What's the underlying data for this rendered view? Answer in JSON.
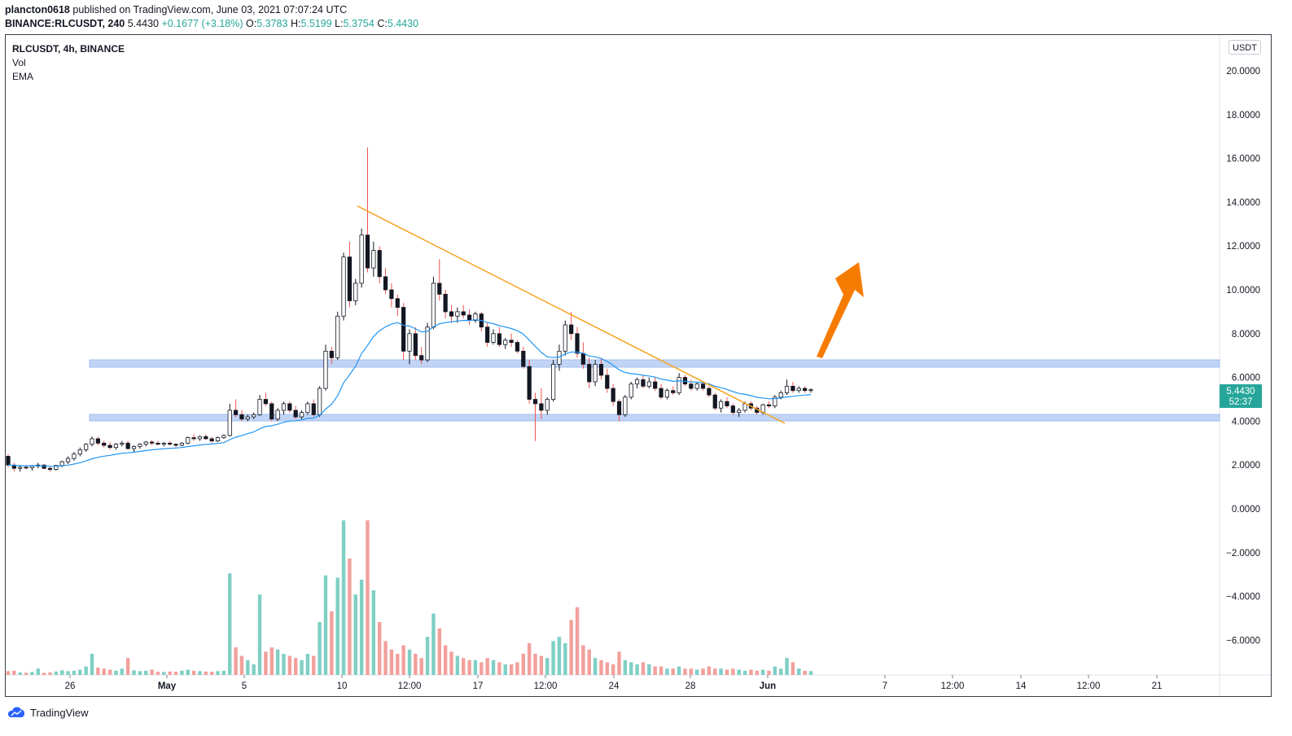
{
  "header": {
    "author": "plancton0618",
    "published_text": "published on TradingView.com, June 03, 2021 07:07:24 UTC",
    "symbol_line": "BINANCE:RLCUSDT, 240",
    "last": "5.4430",
    "change": "+0.1677 (+3.18%)",
    "o_label": "O:",
    "o": "5.3783",
    "h_label": "H:",
    "h": "5.5199",
    "l_label": "L:",
    "l": "5.3754",
    "c_label": "C:",
    "c": "5.4430"
  },
  "legend": {
    "symbol": "RLCUSDT, 4h, BINANCE",
    "vol": "Vol",
    "ema": "EMA"
  },
  "currency_button": "USDT",
  "price_badge": {
    "price": "5.4430",
    "countdown": "52:37"
  },
  "footer": {
    "brand": "TradingView"
  },
  "colors": {
    "up": "#26a69a",
    "down": "#ef5350",
    "ema": "#2196f3",
    "trendline": "#f7a325",
    "arrow": "#f57c00",
    "zone": "#bbd0f5",
    "volume_up": "#7fcfc4",
    "volume_down": "#f2a09c"
  },
  "chart_data": {
    "type": "candlestick",
    "y_ticks": [
      "20.0000",
      "18.0000",
      "16.0000",
      "14.0000",
      "12.0000",
      "10.0000",
      "8.0000",
      "6.0000",
      "4.0000",
      "2.0000",
      "0.0000",
      "−2.0000",
      "−4.0000",
      "−6.0000"
    ],
    "ylim": [
      -7.5,
      21.5
    ],
    "x_ticks": [
      "26",
      "May",
      "5",
      "10",
      "12:00",
      "17",
      "12:00",
      "24",
      "28",
      "Jun",
      "7",
      "12:00",
      "14",
      "12:00",
      "21"
    ],
    "bars": [
      [
        2.4,
        2.5,
        1.9,
        2.0,
        0.18
      ],
      [
        2.0,
        2.1,
        1.7,
        1.85,
        0.2
      ],
      [
        1.85,
        2.0,
        1.7,
        1.9,
        0.12
      ],
      [
        1.9,
        2.0,
        1.8,
        1.88,
        0.1
      ],
      [
        1.88,
        2.0,
        1.75,
        1.95,
        0.14
      ],
      [
        1.95,
        2.1,
        1.85,
        2.0,
        0.3
      ],
      [
        2.0,
        2.05,
        1.8,
        1.85,
        0.1
      ],
      [
        1.85,
        1.95,
        1.7,
        1.8,
        0.12
      ],
      [
        1.8,
        2.0,
        1.75,
        1.98,
        0.16
      ],
      [
        1.98,
        2.2,
        1.9,
        2.15,
        0.22
      ],
      [
        2.15,
        2.4,
        2.05,
        2.3,
        0.18
      ],
      [
        2.3,
        2.6,
        2.2,
        2.5,
        0.2
      ],
      [
        2.5,
        2.8,
        2.4,
        2.7,
        0.25
      ],
      [
        2.7,
        3.0,
        2.6,
        2.95,
        0.4
      ],
      [
        2.95,
        3.3,
        2.85,
        3.2,
        1.0
      ],
      [
        3.2,
        3.3,
        2.9,
        3.0,
        0.35
      ],
      [
        3.0,
        3.1,
        2.8,
        2.9,
        0.3
      ],
      [
        2.9,
        3.05,
        2.7,
        2.8,
        0.25
      ],
      [
        2.8,
        3.0,
        2.7,
        2.95,
        0.2
      ],
      [
        2.95,
        3.1,
        2.85,
        3.0,
        0.3
      ],
      [
        3.0,
        3.1,
        2.7,
        2.75,
        0.8
      ],
      [
        2.75,
        2.9,
        2.6,
        2.85,
        0.22
      ],
      [
        2.85,
        3.0,
        2.75,
        2.95,
        0.18
      ],
      [
        2.95,
        3.1,
        2.85,
        3.05,
        0.2
      ],
      [
        3.05,
        3.15,
        2.9,
        3.0,
        0.25
      ],
      [
        3.0,
        3.1,
        2.9,
        2.95,
        0.15
      ],
      [
        2.95,
        3.05,
        2.85,
        3.0,
        0.14
      ],
      [
        3.0,
        3.1,
        2.9,
        2.95,
        0.16
      ],
      [
        2.95,
        3.0,
        2.8,
        2.9,
        0.15
      ],
      [
        2.9,
        3.05,
        2.85,
        3.0,
        0.2
      ],
      [
        3.0,
        3.3,
        2.95,
        3.25,
        0.25
      ],
      [
        3.25,
        3.4,
        3.1,
        3.2,
        0.2
      ],
      [
        3.2,
        3.35,
        3.1,
        3.3,
        0.18
      ],
      [
        3.3,
        3.4,
        3.15,
        3.2,
        0.16
      ],
      [
        3.2,
        3.3,
        3.0,
        3.1,
        0.15
      ],
      [
        3.1,
        3.3,
        3.05,
        3.25,
        0.18
      ],
      [
        3.25,
        3.4,
        3.2,
        3.35,
        0.2
      ],
      [
        3.35,
        4.8,
        3.3,
        4.5,
        4.8
      ],
      [
        4.5,
        5.0,
        4.2,
        4.3,
        1.3
      ],
      [
        4.3,
        4.5,
        4.0,
        4.1,
        0.9
      ],
      [
        4.1,
        4.3,
        4.0,
        4.2,
        0.7
      ],
      [
        4.2,
        4.4,
        4.1,
        4.3,
        0.5
      ],
      [
        4.3,
        5.2,
        4.25,
        5.0,
        3.8
      ],
      [
        5.0,
        5.3,
        4.7,
        4.8,
        1.1
      ],
      [
        4.8,
        4.9,
        4.0,
        4.1,
        1.3
      ],
      [
        4.1,
        4.6,
        4.0,
        4.5,
        1.2
      ],
      [
        4.5,
        4.9,
        4.3,
        4.8,
        1.0
      ],
      [
        4.8,
        4.9,
        4.4,
        4.5,
        0.9
      ],
      [
        4.5,
        4.7,
        4.1,
        4.2,
        0.8
      ],
      [
        4.2,
        4.5,
        4.1,
        4.4,
        0.7
      ],
      [
        4.4,
        4.9,
        4.3,
        4.8,
        1.0
      ],
      [
        4.8,
        5.0,
        4.2,
        4.3,
        0.9
      ],
      [
        4.3,
        5.6,
        4.2,
        5.5,
        2.5
      ],
      [
        5.5,
        7.5,
        5.4,
        7.2,
        4.7
      ],
      [
        7.2,
        7.4,
        6.6,
        6.9,
        3.0
      ],
      [
        6.9,
        9.0,
        6.8,
        8.8,
        4.6
      ],
      [
        8.8,
        11.7,
        8.6,
        11.5,
        7.3
      ],
      [
        11.5,
        12.2,
        9.2,
        9.5,
        5.5
      ],
      [
        9.5,
        10.5,
        9.3,
        10.3,
        3.8
      ],
      [
        10.3,
        12.8,
        10.1,
        12.5,
        4.5
      ],
      [
        12.5,
        16.5,
        10.8,
        11.0,
        7.3
      ],
      [
        11.0,
        12.2,
        10.6,
        11.8,
        4.0
      ],
      [
        11.8,
        12.0,
        10.3,
        10.6,
        2.5
      ],
      [
        10.6,
        11.0,
        9.8,
        10.0,
        1.6
      ],
      [
        10.0,
        10.3,
        9.2,
        9.6,
        1.2
      ],
      [
        9.6,
        9.8,
        8.8,
        9.2,
        1.0
      ],
      [
        9.2,
        9.4,
        6.8,
        7.2,
        1.4
      ],
      [
        7.2,
        8.2,
        6.6,
        8.0,
        1.2
      ],
      [
        8.0,
        8.3,
        6.8,
        7.0,
        1.0
      ],
      [
        7.0,
        7.4,
        6.6,
        6.8,
        0.8
      ],
      [
        6.8,
        8.5,
        6.7,
        8.3,
        1.8
      ],
      [
        8.3,
        10.6,
        8.2,
        10.3,
        2.9
      ],
      [
        10.3,
        11.4,
        9.5,
        9.8,
        2.2
      ],
      [
        9.8,
        10.0,
        8.7,
        9.0,
        1.4
      ],
      [
        9.0,
        9.3,
        8.5,
        8.8,
        1.1
      ],
      [
        8.8,
        9.2,
        8.5,
        9.0,
        0.9
      ],
      [
        9.0,
        9.3,
        8.7,
        8.85,
        0.8
      ],
      [
        8.85,
        9.1,
        8.4,
        8.6,
        0.7
      ],
      [
        8.6,
        9.0,
        8.5,
        8.9,
        0.7
      ],
      [
        8.9,
        9.0,
        8.1,
        8.3,
        0.6
      ],
      [
        8.3,
        8.5,
        7.4,
        7.6,
        0.8
      ],
      [
        7.6,
        8.2,
        7.5,
        8.0,
        0.7
      ],
      [
        8.0,
        8.3,
        7.4,
        7.5,
        0.6
      ],
      [
        7.5,
        7.8,
        7.3,
        7.7,
        0.5
      ],
      [
        7.7,
        8.0,
        7.4,
        7.6,
        0.5
      ],
      [
        7.6,
        7.7,
        7.1,
        7.2,
        0.6
      ],
      [
        7.2,
        7.4,
        6.4,
        6.5,
        1.0
      ],
      [
        6.5,
        6.8,
        4.8,
        5.0,
        1.5
      ],
      [
        5.0,
        5.3,
        3.1,
        4.8,
        1.0
      ],
      [
        4.8,
        5.5,
        4.1,
        4.5,
        0.9
      ],
      [
        4.5,
        5.1,
        4.3,
        5.0,
        0.8
      ],
      [
        5.0,
        6.8,
        4.9,
        6.6,
        1.6
      ],
      [
        6.6,
        7.5,
        6.3,
        7.2,
        1.8
      ],
      [
        7.2,
        8.6,
        7.0,
        8.4,
        1.5
      ],
      [
        8.4,
        9.0,
        7.7,
        8.0,
        2.6
      ],
      [
        8.0,
        8.3,
        6.9,
        7.1,
        3.2
      ],
      [
        7.1,
        7.6,
        6.4,
        6.6,
        1.4
      ],
      [
        6.6,
        6.9,
        5.5,
        5.8,
        1.2
      ],
      [
        5.8,
        6.8,
        5.6,
        6.6,
        0.8
      ],
      [
        6.6,
        6.9,
        5.9,
        6.1,
        0.7
      ],
      [
        6.1,
        6.4,
        5.3,
        5.5,
        0.6
      ],
      [
        5.5,
        5.7,
        4.7,
        4.9,
        0.5
      ],
      [
        4.9,
        5.0,
        4.0,
        4.3,
        1.1
      ],
      [
        4.3,
        5.2,
        4.2,
        5.1,
        0.7
      ],
      [
        5.1,
        5.8,
        5.0,
        5.7,
        0.6
      ],
      [
        5.7,
        6.0,
        5.5,
        5.9,
        0.5
      ],
      [
        5.9,
        6.1,
        5.5,
        5.6,
        0.6
      ],
      [
        5.6,
        6.0,
        5.5,
        5.8,
        0.5
      ],
      [
        5.8,
        6.0,
        5.4,
        5.5,
        0.4
      ],
      [
        5.5,
        5.7,
        5.0,
        5.1,
        0.4
      ],
      [
        5.1,
        5.5,
        5.0,
        5.4,
        0.3
      ],
      [
        5.4,
        5.6,
        5.2,
        5.3,
        0.3
      ],
      [
        5.3,
        6.2,
        5.2,
        6.0,
        0.4
      ],
      [
        6.0,
        6.1,
        5.6,
        5.7,
        0.3
      ],
      [
        5.7,
        5.9,
        5.4,
        5.5,
        0.3
      ],
      [
        5.5,
        5.8,
        5.4,
        5.7,
        0.25
      ],
      [
        5.7,
        5.8,
        5.4,
        5.5,
        0.3
      ],
      [
        5.5,
        5.6,
        5.1,
        5.2,
        0.4
      ],
      [
        5.2,
        5.3,
        4.5,
        4.6,
        0.3
      ],
      [
        4.6,
        5.0,
        4.4,
        4.9,
        0.3
      ],
      [
        4.9,
        5.1,
        4.6,
        4.7,
        0.25
      ],
      [
        4.7,
        4.8,
        4.3,
        4.4,
        0.3
      ],
      [
        4.4,
        4.6,
        4.2,
        4.5,
        0.25
      ],
      [
        4.5,
        4.9,
        4.4,
        4.8,
        0.2
      ],
      [
        4.8,
        4.9,
        4.5,
        4.6,
        0.25
      ],
      [
        4.6,
        4.7,
        4.3,
        4.4,
        0.2
      ],
      [
        4.4,
        4.8,
        4.3,
        4.75,
        0.25
      ],
      [
        4.75,
        4.9,
        4.6,
        4.7,
        0.2
      ],
      [
        4.7,
        5.2,
        4.6,
        5.1,
        0.4
      ],
      [
        5.1,
        5.4,
        5.0,
        5.3,
        0.3
      ],
      [
        5.3,
        5.9,
        5.2,
        5.6,
        0.8
      ],
      [
        5.6,
        5.8,
        5.3,
        5.4,
        0.6
      ],
      [
        5.4,
        5.6,
        5.3,
        5.5,
        0.3
      ],
      [
        5.5,
        5.6,
        5.3,
        5.4,
        0.2
      ],
      [
        5.4,
        5.5,
        5.3,
        5.44,
        0.18
      ]
    ]
  }
}
